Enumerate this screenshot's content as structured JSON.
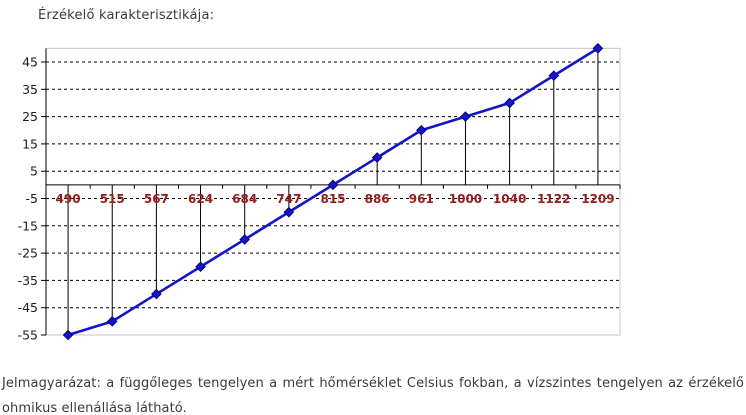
{
  "page": {
    "caption": "Jelmagyarázat: a függőleges tengelyen a mért hőmérséklet Celsius fokban, a vízszintes tengelyen az érzékelő ohmikus ellenállása látható."
  },
  "colors": {
    "series_line": "#1414c8",
    "marker_fill": "#1414c8",
    "marker_stroke": "#000080",
    "x_tick_labels": "#9a1c1c",
    "y_tick_labels": "#1c1c1c",
    "gridline": "#000000",
    "axis": "#000000",
    "drop_line": "#000000",
    "plot_border": "#c6c6c6",
    "title_text": "#3a3a3a",
    "caption_text": "#3a3a3a"
  },
  "chart_data": {
    "type": "line",
    "title": "Érzékelő karakterisztikája:",
    "x_categories": [
      "490",
      "515",
      "567",
      "624",
      "684",
      "747",
      "815",
      "886",
      "961",
      "1000",
      "1040",
      "1122",
      "1209"
    ],
    "values": [
      -55,
      -50,
      -40,
      -30,
      -20,
      -10,
      0,
      10,
      20,
      25,
      30,
      40,
      50
    ],
    "y_ticks": [
      45,
      35,
      25,
      15,
      5,
      -5,
      -15,
      -25,
      -35,
      -45,
      -55
    ],
    "ylim": [
      -55,
      50
    ],
    "grid": "horizontal-dashed",
    "drop_lines": true,
    "marker": "diamond",
    "legend": false
  }
}
